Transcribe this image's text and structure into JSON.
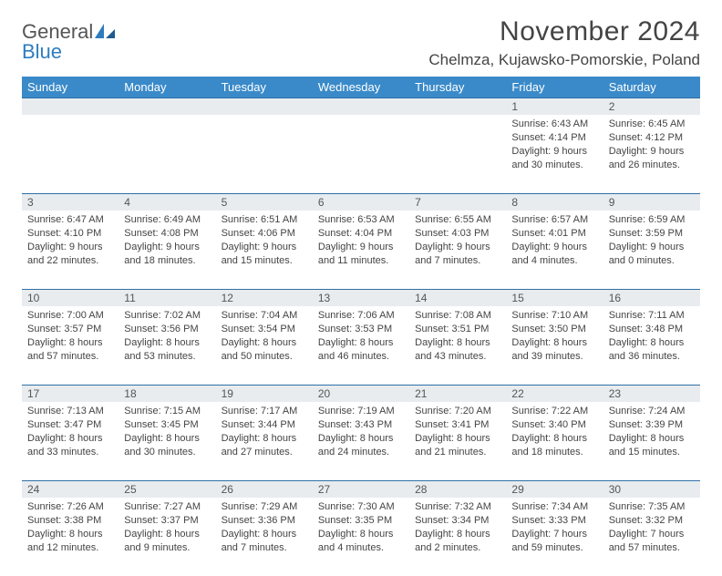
{
  "logo": {
    "word1": "General",
    "word2": "Blue"
  },
  "title": "November 2024",
  "location": "Chelmza, Kujawsko-Pomorskie, Poland",
  "colors": {
    "header_bg": "#3a8ac9",
    "header_text": "#ffffff",
    "daynum_bg": "#e8ecef",
    "daynum_border": "#2f6fa6",
    "body_text": "#444444",
    "logo_gray": "#555555",
    "logo_blue": "#2e7cc0"
  },
  "day_headers": [
    "Sunday",
    "Monday",
    "Tuesday",
    "Wednesday",
    "Thursday",
    "Friday",
    "Saturday"
  ],
  "weeks": [
    [
      null,
      null,
      null,
      null,
      null,
      {
        "n": "1",
        "sr": "Sunrise: 6:43 AM",
        "ss": "Sunset: 4:14 PM",
        "d1": "Daylight: 9 hours",
        "d2": "and 30 minutes."
      },
      {
        "n": "2",
        "sr": "Sunrise: 6:45 AM",
        "ss": "Sunset: 4:12 PM",
        "d1": "Daylight: 9 hours",
        "d2": "and 26 minutes."
      }
    ],
    [
      {
        "n": "3",
        "sr": "Sunrise: 6:47 AM",
        "ss": "Sunset: 4:10 PM",
        "d1": "Daylight: 9 hours",
        "d2": "and 22 minutes."
      },
      {
        "n": "4",
        "sr": "Sunrise: 6:49 AM",
        "ss": "Sunset: 4:08 PM",
        "d1": "Daylight: 9 hours",
        "d2": "and 18 minutes."
      },
      {
        "n": "5",
        "sr": "Sunrise: 6:51 AM",
        "ss": "Sunset: 4:06 PM",
        "d1": "Daylight: 9 hours",
        "d2": "and 15 minutes."
      },
      {
        "n": "6",
        "sr": "Sunrise: 6:53 AM",
        "ss": "Sunset: 4:04 PM",
        "d1": "Daylight: 9 hours",
        "d2": "and 11 minutes."
      },
      {
        "n": "7",
        "sr": "Sunrise: 6:55 AM",
        "ss": "Sunset: 4:03 PM",
        "d1": "Daylight: 9 hours",
        "d2": "and 7 minutes."
      },
      {
        "n": "8",
        "sr": "Sunrise: 6:57 AM",
        "ss": "Sunset: 4:01 PM",
        "d1": "Daylight: 9 hours",
        "d2": "and 4 minutes."
      },
      {
        "n": "9",
        "sr": "Sunrise: 6:59 AM",
        "ss": "Sunset: 3:59 PM",
        "d1": "Daylight: 9 hours",
        "d2": "and 0 minutes."
      }
    ],
    [
      {
        "n": "10",
        "sr": "Sunrise: 7:00 AM",
        "ss": "Sunset: 3:57 PM",
        "d1": "Daylight: 8 hours",
        "d2": "and 57 minutes."
      },
      {
        "n": "11",
        "sr": "Sunrise: 7:02 AM",
        "ss": "Sunset: 3:56 PM",
        "d1": "Daylight: 8 hours",
        "d2": "and 53 minutes."
      },
      {
        "n": "12",
        "sr": "Sunrise: 7:04 AM",
        "ss": "Sunset: 3:54 PM",
        "d1": "Daylight: 8 hours",
        "d2": "and 50 minutes."
      },
      {
        "n": "13",
        "sr": "Sunrise: 7:06 AM",
        "ss": "Sunset: 3:53 PM",
        "d1": "Daylight: 8 hours",
        "d2": "and 46 minutes."
      },
      {
        "n": "14",
        "sr": "Sunrise: 7:08 AM",
        "ss": "Sunset: 3:51 PM",
        "d1": "Daylight: 8 hours",
        "d2": "and 43 minutes."
      },
      {
        "n": "15",
        "sr": "Sunrise: 7:10 AM",
        "ss": "Sunset: 3:50 PM",
        "d1": "Daylight: 8 hours",
        "d2": "and 39 minutes."
      },
      {
        "n": "16",
        "sr": "Sunrise: 7:11 AM",
        "ss": "Sunset: 3:48 PM",
        "d1": "Daylight: 8 hours",
        "d2": "and 36 minutes."
      }
    ],
    [
      {
        "n": "17",
        "sr": "Sunrise: 7:13 AM",
        "ss": "Sunset: 3:47 PM",
        "d1": "Daylight: 8 hours",
        "d2": "and 33 minutes."
      },
      {
        "n": "18",
        "sr": "Sunrise: 7:15 AM",
        "ss": "Sunset: 3:45 PM",
        "d1": "Daylight: 8 hours",
        "d2": "and 30 minutes."
      },
      {
        "n": "19",
        "sr": "Sunrise: 7:17 AM",
        "ss": "Sunset: 3:44 PM",
        "d1": "Daylight: 8 hours",
        "d2": "and 27 minutes."
      },
      {
        "n": "20",
        "sr": "Sunrise: 7:19 AM",
        "ss": "Sunset: 3:43 PM",
        "d1": "Daylight: 8 hours",
        "d2": "and 24 minutes."
      },
      {
        "n": "21",
        "sr": "Sunrise: 7:20 AM",
        "ss": "Sunset: 3:41 PM",
        "d1": "Daylight: 8 hours",
        "d2": "and 21 minutes."
      },
      {
        "n": "22",
        "sr": "Sunrise: 7:22 AM",
        "ss": "Sunset: 3:40 PM",
        "d1": "Daylight: 8 hours",
        "d2": "and 18 minutes."
      },
      {
        "n": "23",
        "sr": "Sunrise: 7:24 AM",
        "ss": "Sunset: 3:39 PM",
        "d1": "Daylight: 8 hours",
        "d2": "and 15 minutes."
      }
    ],
    [
      {
        "n": "24",
        "sr": "Sunrise: 7:26 AM",
        "ss": "Sunset: 3:38 PM",
        "d1": "Daylight: 8 hours",
        "d2": "and 12 minutes."
      },
      {
        "n": "25",
        "sr": "Sunrise: 7:27 AM",
        "ss": "Sunset: 3:37 PM",
        "d1": "Daylight: 8 hours",
        "d2": "and 9 minutes."
      },
      {
        "n": "26",
        "sr": "Sunrise: 7:29 AM",
        "ss": "Sunset: 3:36 PM",
        "d1": "Daylight: 8 hours",
        "d2": "and 7 minutes."
      },
      {
        "n": "27",
        "sr": "Sunrise: 7:30 AM",
        "ss": "Sunset: 3:35 PM",
        "d1": "Daylight: 8 hours",
        "d2": "and 4 minutes."
      },
      {
        "n": "28",
        "sr": "Sunrise: 7:32 AM",
        "ss": "Sunset: 3:34 PM",
        "d1": "Daylight: 8 hours",
        "d2": "and 2 minutes."
      },
      {
        "n": "29",
        "sr": "Sunrise: 7:34 AM",
        "ss": "Sunset: 3:33 PM",
        "d1": "Daylight: 7 hours",
        "d2": "and 59 minutes."
      },
      {
        "n": "30",
        "sr": "Sunrise: 7:35 AM",
        "ss": "Sunset: 3:32 PM",
        "d1": "Daylight: 7 hours",
        "d2": "and 57 minutes."
      }
    ]
  ]
}
